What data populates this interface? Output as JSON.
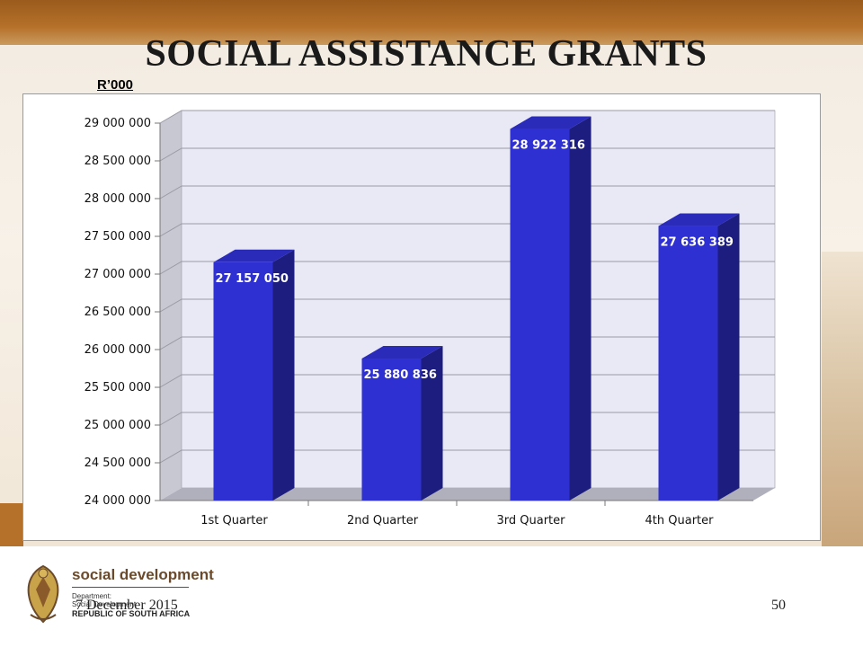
{
  "page": {
    "title": "SOCIAL ASSISTANCE GRANTS",
    "unit_label": "R’000",
    "footer": {
      "dept_name": "social development",
      "dept_line1": "Department:",
      "dept_line2": "Social Development",
      "country": "REPUBLIC OF SOUTH AFRICA",
      "date": "7 December 2015",
      "page_number": "50"
    }
  },
  "colors": {
    "bar_front": "#2e30d2",
    "bar_top": "#2a2bb8",
    "bar_side": "#1c1d7e",
    "plot_back": "#e9e9f6",
    "plot_wall": "#c8c8d2",
    "plot_floor": "#b0b0bc",
    "gridline": "#9a9aa6",
    "header_band": "#b5712a"
  },
  "chart_data": {
    "type": "bar",
    "style": "3d-column",
    "categories": [
      "1st Quarter",
      "2nd Quarter",
      "3rd Quarter",
      "4th Quarter"
    ],
    "values": [
      27157050,
      25880836,
      28922316,
      27636389
    ],
    "value_labels": [
      "27 157 050",
      "25 880 836",
      "28 922 316",
      "27 636 389"
    ],
    "ylim": [
      24000000,
      29000000
    ],
    "yticks": [
      24000000,
      24500000,
      25000000,
      25500000,
      26000000,
      26500000,
      27000000,
      27500000,
      28000000,
      28500000,
      29000000
    ],
    "ytick_labels": [
      "24 000 000",
      "24 500 000",
      "25 000 000",
      "25 500 000",
      "26 000 000",
      "26 500 000",
      "27 000 000",
      "27 500 000",
      "28 000 000",
      "28 500 000",
      "29 000 000"
    ],
    "grid": true,
    "legend": "none",
    "title": "",
    "xlabel": "",
    "ylabel": ""
  }
}
